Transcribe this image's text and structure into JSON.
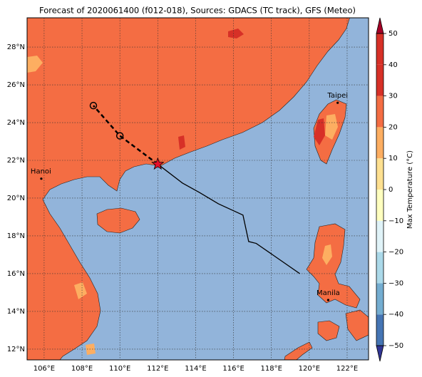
{
  "chart_data": {
    "type": "map",
    "title": "Forecast of 2020061400 (f012-018), Sources: GDACS (TC track), GFS (Meteo)",
    "xlim": [
      105.1,
      123.13
    ],
    "ylim": [
      11.43,
      29.55
    ],
    "xticks": [
      {
        "value": 106,
        "label": "106°E"
      },
      {
        "value": 108,
        "label": "108°E"
      },
      {
        "value": 110,
        "label": "110°E"
      },
      {
        "value": 112,
        "label": "112°E"
      },
      {
        "value": 114,
        "label": "114°E"
      },
      {
        "value": 116,
        "label": "116°E"
      },
      {
        "value": 118,
        "label": "118°E"
      },
      {
        "value": 120,
        "label": "120°E"
      },
      {
        "value": 122,
        "label": "122°E"
      }
    ],
    "yticks": [
      {
        "value": 12,
        "label": "12°N"
      },
      {
        "value": 14,
        "label": "14°N"
      },
      {
        "value": 16,
        "label": "16°N"
      },
      {
        "value": 18,
        "label": "18°N"
      },
      {
        "value": 20,
        "label": "20°N"
      },
      {
        "value": 22,
        "label": "22°N"
      },
      {
        "value": 24,
        "label": "24°N"
      },
      {
        "value": 26,
        "label": "26°N"
      },
      {
        "value": 28,
        "label": "28°N"
      }
    ],
    "grid": true,
    "track": {
      "forecast": {
        "lon": [
          112.0,
          110.0,
          108.6
        ],
        "lat": [
          21.8,
          23.3,
          24.9
        ]
      },
      "past": {
        "lon": [
          112.0,
          113.3,
          114.2,
          115.2,
          116.5,
          116.8,
          117.2,
          119.5
        ],
        "lat": [
          21.8,
          20.8,
          20.3,
          19.7,
          19.1,
          17.7,
          17.6,
          16.0
        ]
      }
    },
    "cities": [
      {
        "name": "Hanoi",
        "lon": 105.85,
        "lat": 21.03
      },
      {
        "name": "Taipei",
        "lon": 121.5,
        "lat": 25.05
      },
      {
        "name": "Manila",
        "lon": 121.0,
        "lat": 14.6
      }
    ],
    "colorbar": {
      "label": "Max Temperature (°C)",
      "lim": [
        -50,
        50
      ],
      "ticks": [
        {
          "value": -50,
          "label": "−50"
        },
        {
          "value": -40,
          "label": "−40"
        },
        {
          "value": -30,
          "label": "−30"
        },
        {
          "value": -20,
          "label": "−20"
        },
        {
          "value": -10,
          "label": "−10"
        },
        0,
        10,
        20,
        30,
        40,
        50
      ],
      "colors": [
        "#313695",
        "#4575b4",
        "#74add1",
        "#abd9e9",
        "#e0f3f8",
        "#ffffbf",
        "#fee090",
        "#fdae61",
        "#f46d43",
        "#d73027",
        "#a50026"
      ]
    }
  }
}
